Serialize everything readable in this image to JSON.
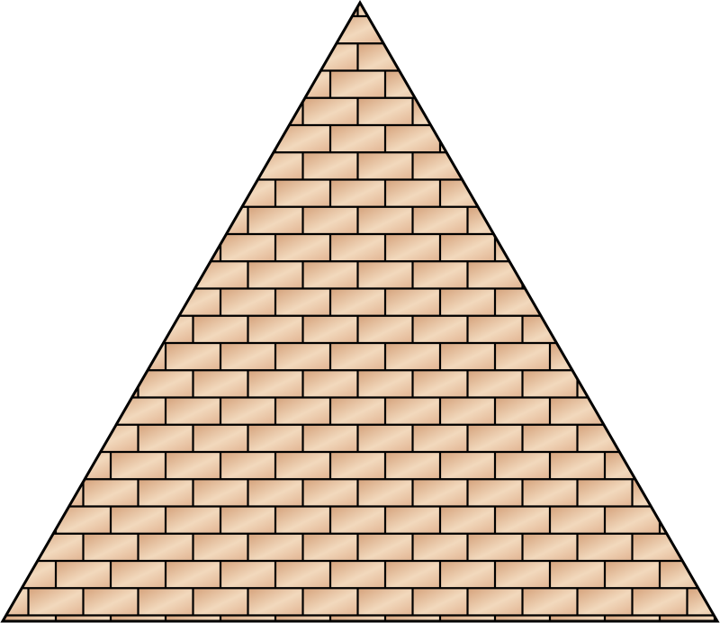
{
  "illustration": {
    "subject": "brick-pyramid",
    "colors": {
      "background": "#ffffff",
      "brick_light": "#f2d9bd",
      "brick_base": "#e2b593",
      "brick_dark": "#d6a47e",
      "mortar": "#000000",
      "outline": "#000000"
    }
  }
}
